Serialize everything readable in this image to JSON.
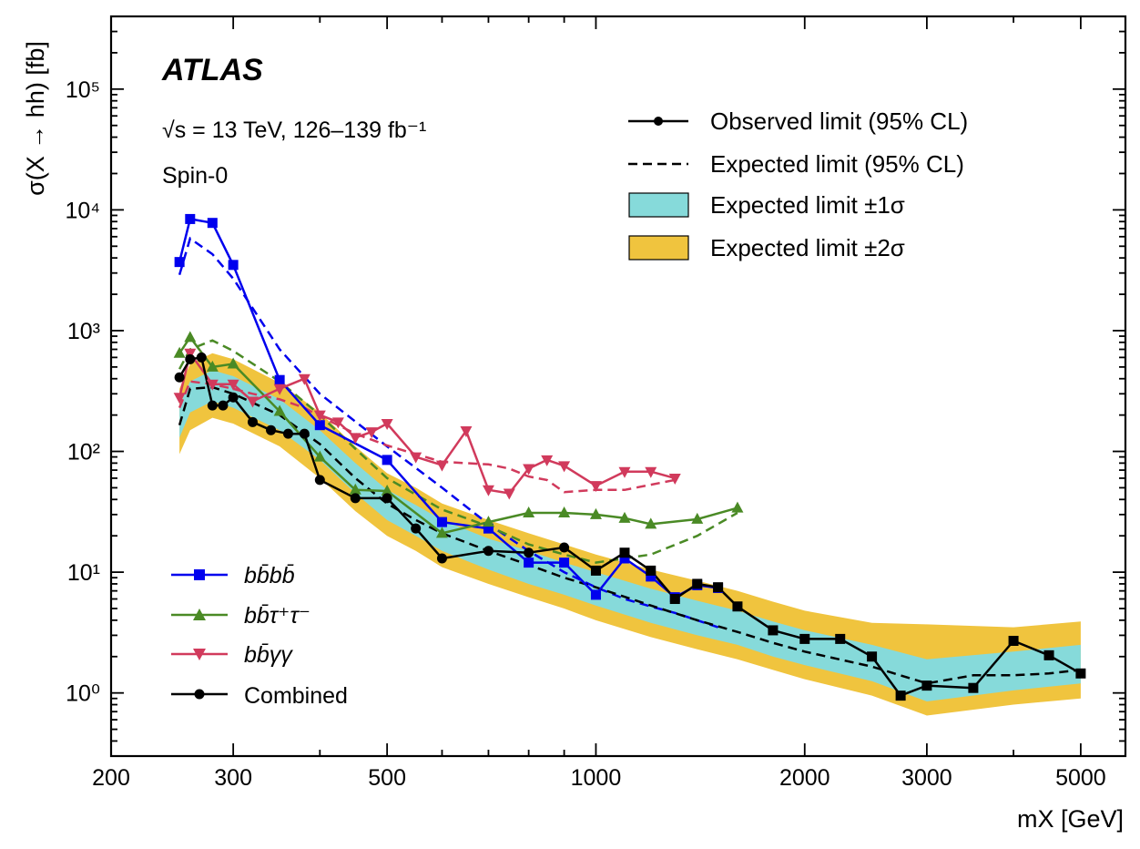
{
  "labels": {
    "experiment": "ATLAS",
    "energy": "√s = 13 TeV, 126–139 fb⁻¹",
    "model": "Spin-0",
    "ylabel": "σ(X → hh) [fb]",
    "xlabel": "mX [GeV]"
  },
  "legend_main": {
    "observed": "Observed limit (95% CL)",
    "expected": "Expected limit (95% CL)",
    "band1": "Expected limit ±1σ",
    "band2": "Expected limit ±2σ"
  },
  "legend_channels": {
    "bbbb": "bb̄bb̄",
    "bbtautau": "bb̄τ⁺τ⁻",
    "bbyy": "bb̄γγ",
    "combined": "Combined"
  },
  "colors": {
    "bbbb": "#0000ee",
    "bbtautau": "#4a8a25",
    "bbyy": "#d13a5c",
    "combined": "#000000",
    "band1": "#86dada",
    "band2": "#f0c43e"
  },
  "chart_data": {
    "type": "line",
    "xscale": "log",
    "yscale": "log",
    "xlim": [
      200,
      5800
    ],
    "ylim": [
      0.3,
      400000
    ],
    "x_ticks": [
      200,
      300,
      500,
      1000,
      2000,
      3000,
      5000
    ],
    "x_tick_labels": [
      "200",
      "300",
      "500",
      "1000",
      "2000",
      "3000",
      "5000"
    ],
    "y_ticks": [
      1,
      10,
      100,
      1000,
      10000,
      100000
    ],
    "y_tick_labels": [
      "10⁰",
      "10¹",
      "10²",
      "10³",
      "10⁴",
      "10⁵"
    ],
    "combined_band": {
      "x": [
        251,
        260,
        280,
        300,
        350,
        400,
        450,
        500,
        550,
        600,
        700,
        800,
        900,
        1000,
        1200,
        1400,
        1600,
        1800,
        2000,
        2500,
        3000,
        4000,
        5000
      ],
      "minus2": [
        95,
        150,
        190,
        170,
        110,
        60,
        32,
        20,
        15,
        11,
        8.0,
        6.2,
        5.0,
        4.0,
        2.9,
        2.3,
        1.9,
        1.55,
        1.3,
        0.95,
        0.65,
        0.8,
        0.9
      ],
      "minus1": [
        130,
        210,
        260,
        230,
        150,
        85,
        45,
        27,
        20,
        15,
        10.5,
        8.0,
        6.5,
        5.3,
        3.8,
        3.0,
        2.5,
        2.0,
        1.7,
        1.25,
        0.85,
        1.05,
        1.2
      ],
      "plus1": [
        240,
        380,
        470,
        420,
        270,
        150,
        80,
        48,
        36,
        27,
        19,
        15,
        12,
        10,
        7.3,
        5.8,
        4.8,
        3.9,
        3.3,
        2.5,
        1.9,
        2.2,
        2.5
      ],
      "plus2": [
        330,
        530,
        650,
        580,
        370,
        210,
        110,
        66,
        50,
        37,
        27,
        21,
        17,
        14,
        10.5,
        8.5,
        7.0,
        5.7,
        4.8,
        3.8,
        3.7,
        3.5,
        3.9
      ]
    },
    "series": [
      {
        "name": "bb̄bb̄",
        "color_key": "bbbb",
        "marker": "square",
        "observed": {
          "x": [
            251,
            260,
            280,
            300,
            350,
            400,
            500,
            600,
            700,
            800,
            900,
            1000,
            1100,
            1200,
            1300,
            1400,
            1500
          ],
          "y": [
            3700,
            8400,
            7800,
            3500,
            390,
            165,
            85,
            26,
            23,
            12,
            12,
            6.5,
            13,
            9.2,
            6.2,
            7.8,
            7.4
          ]
        },
        "expected": {
          "x": [
            251,
            260,
            280,
            300,
            350,
            400,
            500,
            600,
            700,
            800,
            900,
            1000,
            1100,
            1200,
            1300,
            1400,
            1500
          ],
          "y": [
            2900,
            5800,
            4300,
            2700,
            700,
            300,
            110,
            50,
            25,
            15,
            10,
            7.5,
            6.0,
            5.2,
            4.6,
            4.0,
            3.5
          ]
        }
      },
      {
        "name": "bb̄τ⁺τ⁻",
        "color_key": "bbtautau",
        "marker": "triangle-up",
        "observed": {
          "x": [
            251,
            260,
            280,
            300,
            350,
            400,
            450,
            500,
            600,
            700,
            800,
            900,
            1000,
            1100,
            1200,
            1400,
            1600
          ],
          "y": [
            650,
            880,
            500,
            530,
            215,
            90,
            48,
            47,
            21,
            26,
            31,
            31,
            30,
            28,
            25,
            27.5,
            34
          ]
        },
        "expected": {
          "x": [
            251,
            260,
            280,
            300,
            350,
            400,
            450,
            500,
            600,
            700,
            800,
            900,
            1000,
            1100,
            1200,
            1400,
            1600
          ],
          "y": [
            480,
            700,
            830,
            680,
            380,
            200,
            105,
            60,
            33,
            24,
            17,
            14,
            12,
            13,
            14,
            20,
            31
          ]
        }
      },
      {
        "name": "bb̄γγ",
        "color_key": "bbyy",
        "marker": "triangle-down",
        "observed": {
          "x": [
            251,
            260,
            280,
            300,
            320,
            350,
            380,
            400,
            425,
            450,
            475,
            500,
            550,
            600,
            650,
            700,
            750,
            800,
            850,
            900,
            1000,
            1100,
            1200,
            1300
          ],
          "y": [
            280,
            650,
            360,
            360,
            260,
            330,
            400,
            200,
            175,
            130,
            145,
            170,
            90,
            77,
            148,
            48,
            45,
            72,
            85,
            76,
            52,
            68,
            68,
            60
          ]
        },
        "expected": {
          "x": [
            251,
            260,
            280,
            300,
            320,
            350,
            380,
            400,
            425,
            450,
            475,
            500,
            550,
            600,
            650,
            700,
            750,
            800,
            850,
            900,
            1000,
            1100,
            1200,
            1300
          ],
          "y": [
            230,
            380,
            360,
            330,
            300,
            270,
            230,
            195,
            165,
            140,
            125,
            112,
            95,
            82,
            80,
            78,
            72,
            62,
            58,
            46,
            48,
            48,
            53,
            58
          ]
        }
      },
      {
        "name": "Combined",
        "color_key": "combined",
        "marker": "circle",
        "observed": {
          "x": [
            251,
            260,
            270,
            280,
            290,
            300,
            320,
            340,
            360,
            380,
            400,
            450,
            500,
            550,
            600,
            700,
            800,
            900,
            1000,
            1100,
            1200,
            1300,
            1400,
            1500,
            1600,
            1800,
            2000,
            2250,
            2500,
            2750,
            3000,
            3500,
            4000,
            4500,
            5000
          ],
          "y": [
            410,
            580,
            600,
            240,
            240,
            280,
            175,
            150,
            140,
            140,
            58,
            41,
            41,
            23,
            13,
            15,
            14.5,
            16,
            10.3,
            14.5,
            10.3,
            6.0,
            8.0,
            7.5,
            5.2,
            3.3,
            2.8,
            2.8,
            2.0,
            0.95,
            1.15,
            1.1,
            2.7,
            2.05,
            1.45
          ]
        },
        "expected": {
          "x": [
            251,
            260,
            280,
            300,
            350,
            400,
            450,
            500,
            550,
            600,
            700,
            800,
            900,
            1000,
            1200,
            1400,
            1600,
            1800,
            2000,
            2500,
            3000,
            3500,
            4000,
            4500,
            5000
          ],
          "y": [
            165,
            330,
            340,
            300,
            200,
            115,
            60,
            37,
            27,
            21,
            15,
            11.5,
            9.0,
            7.5,
            5.3,
            4.0,
            3.2,
            2.6,
            2.2,
            1.65,
            1.2,
            1.4,
            1.4,
            1.45,
            1.55
          ]
        },
        "observed_square_from_index": 18
      }
    ]
  }
}
